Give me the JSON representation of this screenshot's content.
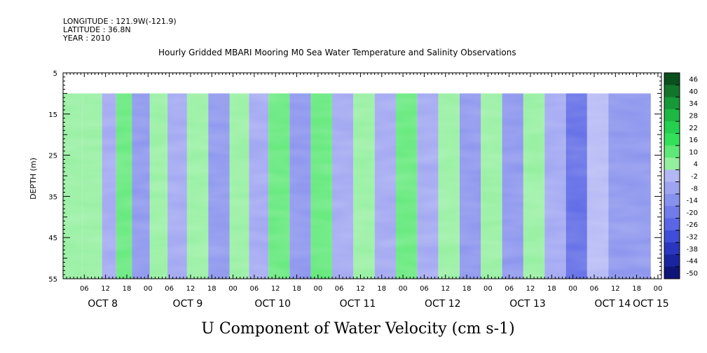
{
  "header": {
    "longitude": "LONGITUDE : 121.9W(-121.9)",
    "latitude": "LATITUDE : 36.8N",
    "year": "YEAR : 2010",
    "title": "Hourly Gridded MBARI Mooring M0 Sea Water Temperature and Salinity Observations"
  },
  "chart_data": {
    "type": "heatmap",
    "title": "Hourly Gridded MBARI Mooring M0 Sea Water Temperature and Salinity Observations",
    "xlabel": "U Component of Water Velocity (cm s-1)",
    "ylabel": "DEPTH (m)",
    "ylim": [
      5,
      55
    ],
    "y_inverted": true,
    "yticks": [
      5,
      15,
      25,
      35,
      45,
      55
    ],
    "xlim_hours": [
      0,
      169
    ],
    "x_hour_labels": [
      "06",
      "12",
      "18",
      "00",
      "06",
      "12",
      "18",
      "00",
      "06",
      "12",
      "18",
      "00",
      "06",
      "12",
      "18",
      "00",
      "06",
      "12",
      "18",
      "00",
      "06",
      "12",
      "18",
      "00",
      "06",
      "12",
      "18",
      "00"
    ],
    "x_day_labels": [
      "OCT  8",
      "OCT  9",
      "OCT 10",
      "OCT 11",
      "OCT 12",
      "OCT 13",
      "OCT 14",
      "OCT 15"
    ],
    "data_depth_range": [
      10,
      55
    ],
    "colorbar": {
      "levels": [
        "46",
        "40",
        "34",
        "28",
        "22",
        "16",
        "10",
        "4",
        "-2",
        "-8",
        "-14",
        "-20",
        "-26",
        "-32",
        "-38",
        "-44",
        "-50"
      ],
      "colors": [
        "#0b4f1e",
        "#11752b",
        "#169938",
        "#1db844",
        "#24d04d",
        "#33e05a",
        "#5fe877",
        "#93ef9e",
        "#b3b7f4",
        "#9ea4f1",
        "#8891ed",
        "#717bea",
        "#5a66e5",
        "#3f4ed8",
        "#2b36bf",
        "#1b24a0",
        "#0e1478"
      ]
    },
    "columns": [
      {
        "hour": 2,
        "value": 6
      },
      {
        "hour": 9,
        "value": 9
      },
      {
        "hour": 13,
        "value": -3
      },
      {
        "hour": 17,
        "value": 10
      },
      {
        "hour": 22,
        "value": -10
      },
      {
        "hour": 27,
        "value": 6
      },
      {
        "hour": 32,
        "value": -7
      },
      {
        "hour": 38,
        "value": 5
      },
      {
        "hour": 44,
        "value": -14
      },
      {
        "hour": 50,
        "value": 8
      },
      {
        "hour": 55,
        "value": -6
      },
      {
        "hour": 61,
        "value": 12
      },
      {
        "hour": 67,
        "value": -11
      },
      {
        "hour": 73,
        "value": 11
      },
      {
        "hour": 79,
        "value": -8
      },
      {
        "hour": 85,
        "value": 9
      },
      {
        "hour": 91,
        "value": -5
      },
      {
        "hour": 97,
        "value": 12
      },
      {
        "hour": 103,
        "value": -4
      },
      {
        "hour": 109,
        "value": 7
      },
      {
        "hour": 115,
        "value": -10
      },
      {
        "hour": 121,
        "value": 5
      },
      {
        "hour": 127,
        "value": -9
      },
      {
        "hour": 133,
        "value": 4
      },
      {
        "hour": 139,
        "value": -6
      },
      {
        "hour": 145,
        "value": -22
      },
      {
        "hour": 151,
        "value": 3
      },
      {
        "hour": 157,
        "value": -12
      },
      {
        "hour": 163,
        "value": -10
      }
    ]
  }
}
